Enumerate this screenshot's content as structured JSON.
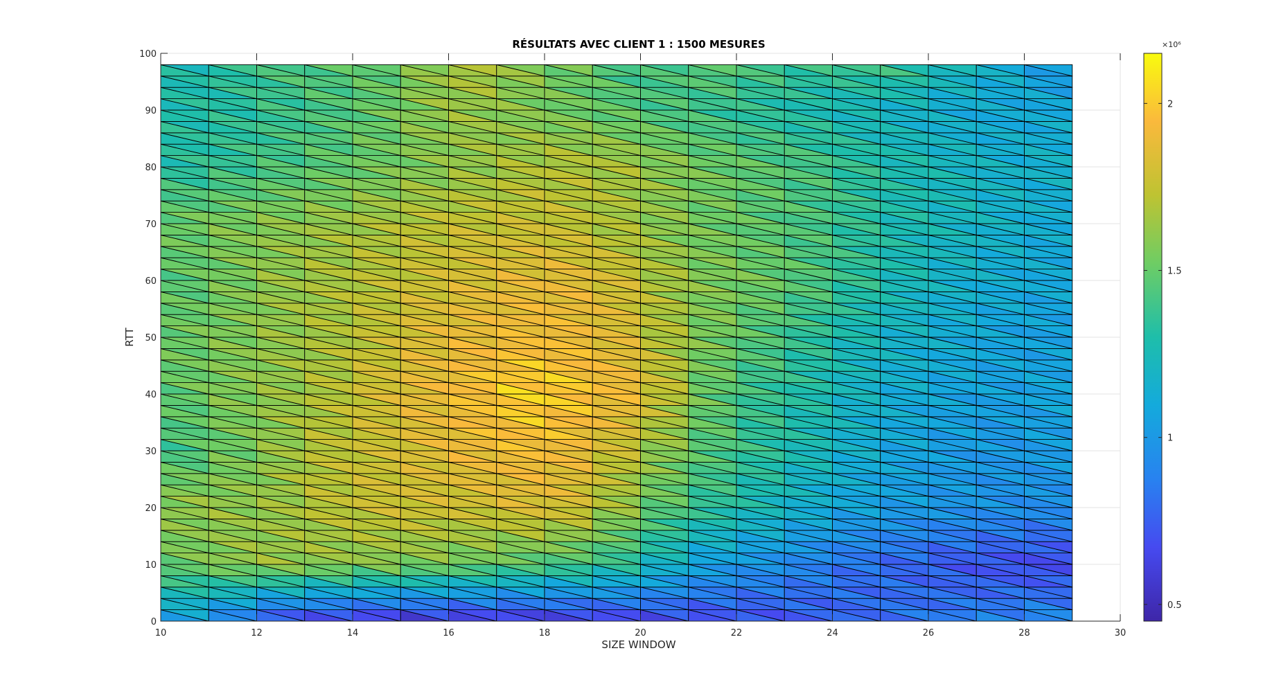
{
  "chart_data": {
    "type": "heatmap",
    "title": "RÉSULTATS AVEC CLIENT 1 : 1500 MESURES",
    "xlabel": "SIZE WINDOW",
    "ylabel": "RTT",
    "xlim": [
      10,
      30
    ],
    "ylim": [
      0,
      100
    ],
    "x_ticks": [
      "10",
      "12",
      "14",
      "16",
      "18",
      "20",
      "22",
      "24",
      "26",
      "28",
      "30"
    ],
    "y_ticks": [
      "0",
      "10",
      "20",
      "30",
      "40",
      "50",
      "60",
      "70",
      "80",
      "90",
      "100"
    ],
    "grid": true,
    "colormap": "parula",
    "colorbar": {
      "position": "right",
      "exponent_label": "×10⁶",
      "ticks": [
        "0.5",
        "1",
        "1.5",
        "2"
      ],
      "tick_values": [
        0.5,
        1.0,
        1.5,
        2.0
      ],
      "range": [
        0.45,
        2.15
      ]
    },
    "x": [
      10,
      11,
      12,
      13,
      14,
      15,
      16,
      17,
      18,
      19,
      20,
      21,
      22,
      23,
      24,
      25,
      26,
      27,
      28,
      29
    ],
    "y": [
      0,
      10,
      20,
      30,
      40,
      50,
      60,
      70,
      80,
      90,
      98
    ],
    "values": [
      [
        1.05,
        1.0,
        0.7,
        0.62,
        0.58,
        0.55,
        0.55,
        0.55,
        0.56,
        0.58,
        0.62,
        0.65,
        0.68,
        0.7,
        0.75,
        0.8,
        0.85,
        0.88,
        0.92,
        0.95
      ],
      [
        1.5,
        1.55,
        1.65,
        1.62,
        1.6,
        1.58,
        1.55,
        1.5,
        1.45,
        1.4,
        1.3,
        1.1,
        1.0,
        0.95,
        0.85,
        0.8,
        0.75,
        0.7,
        0.68,
        0.65
      ],
      [
        1.6,
        1.65,
        1.6,
        1.7,
        1.75,
        1.8,
        1.78,
        1.8,
        1.85,
        1.75,
        1.55,
        1.4,
        1.3,
        1.2,
        1.1,
        1.05,
        1.0,
        0.98,
        0.95,
        0.95
      ],
      [
        1.35,
        1.5,
        1.55,
        1.7,
        1.75,
        1.8,
        1.88,
        1.92,
        1.95,
        1.85,
        1.7,
        1.5,
        1.4,
        1.3,
        1.2,
        1.1,
        1.05,
        1.0,
        1.0,
        1.05
      ],
      [
        1.45,
        1.55,
        1.6,
        1.65,
        1.75,
        1.85,
        1.9,
        2.0,
        2.05,
        1.95,
        1.9,
        1.6,
        1.4,
        1.35,
        1.25,
        1.15,
        1.1,
        1.05,
        1.05,
        1.1
      ],
      [
        1.5,
        1.55,
        1.6,
        1.65,
        1.7,
        1.8,
        1.88,
        1.9,
        1.95,
        1.88,
        1.8,
        1.6,
        1.5,
        1.4,
        1.3,
        1.2,
        1.15,
        1.1,
        1.05,
        1.05
      ],
      [
        1.45,
        1.5,
        1.6,
        1.65,
        1.7,
        1.75,
        1.8,
        1.85,
        1.88,
        1.85,
        1.75,
        1.6,
        1.55,
        1.5,
        1.4,
        1.3,
        1.2,
        1.15,
        1.1,
        1.1
      ],
      [
        1.5,
        1.55,
        1.58,
        1.62,
        1.65,
        1.7,
        1.75,
        1.75,
        1.78,
        1.7,
        1.65,
        1.55,
        1.5,
        1.45,
        1.4,
        1.3,
        1.25,
        1.2,
        1.15,
        1.1
      ],
      [
        1.3,
        1.35,
        1.4,
        1.45,
        1.5,
        1.55,
        1.6,
        1.65,
        1.7,
        1.7,
        1.65,
        1.55,
        1.5,
        1.45,
        1.4,
        1.3,
        1.25,
        1.2,
        1.15,
        1.2
      ],
      [
        1.3,
        1.3,
        1.35,
        1.4,
        1.45,
        1.55,
        1.65,
        1.6,
        1.55,
        1.5,
        1.45,
        1.4,
        1.35,
        1.3,
        1.25,
        1.2,
        1.15,
        1.1,
        1.1,
        1.1
      ],
      [
        1.25,
        1.3,
        1.4,
        1.45,
        1.45,
        1.5,
        1.7,
        1.68,
        1.55,
        1.5,
        1.35,
        1.5,
        1.45,
        1.4,
        1.35,
        1.45,
        1.3,
        1.2,
        1.1,
        0.95
      ]
    ]
  }
}
